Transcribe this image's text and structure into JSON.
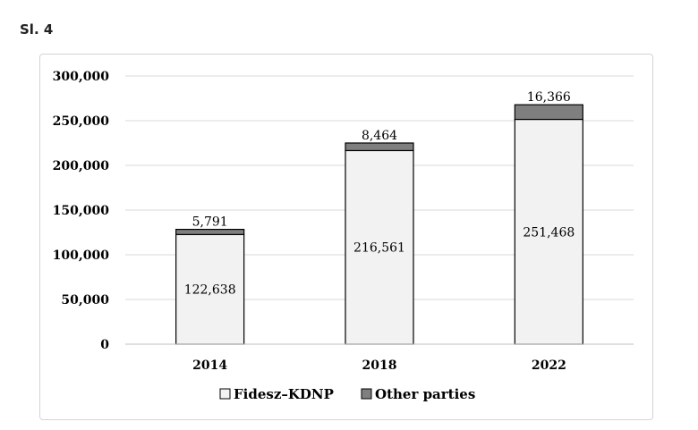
{
  "figure_label": "Sl. 4",
  "chart_data": {
    "type": "bar",
    "stacked": true,
    "categories": [
      "2014",
      "2018",
      "2022"
    ],
    "series": [
      {
        "name": "Fidesz–KDNP",
        "values": [
          122638,
          216561,
          251468
        ],
        "labels": [
          "122,638",
          "216,561",
          "251,468"
        ]
      },
      {
        "name": "Other parties",
        "values": [
          5791,
          8464,
          16366
        ],
        "labels": [
          "5,791",
          "8,464",
          "16,366"
        ]
      }
    ],
    "ylim": [
      0,
      300000
    ],
    "yticks": [
      0,
      50000,
      100000,
      150000,
      200000,
      250000,
      300000
    ],
    "ytick_labels": [
      "0",
      "50,000",
      "100,000",
      "150,000",
      "200,000",
      "250,000",
      "300,000"
    ],
    "title": "",
    "xlabel": "",
    "ylabel": "",
    "grid": true,
    "legend_position": "bottom",
    "colors": {
      "series0": "#f2f2f2",
      "series1": "#7f7f7f",
      "grid": "#d9d9d9",
      "outline": "#000000"
    }
  }
}
